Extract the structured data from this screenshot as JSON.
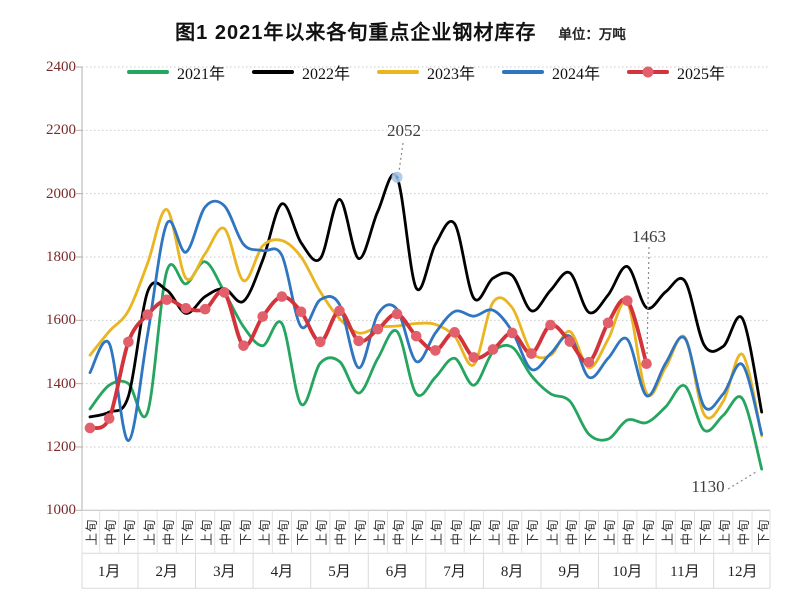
{
  "title": "图1  2021年以来各旬重点企业钢材库存",
  "unit_label": "单位：万吨",
  "chart_data": {
    "type": "line",
    "title": "图1 2021年以来各旬重点企业钢材库存",
    "unit": "万吨",
    "legend_position": "top",
    "grid": "horizontal-dotted",
    "x_axis": {
      "months": [
        "1月",
        "2月",
        "3月",
        "4月",
        "5月",
        "6月",
        "7月",
        "8月",
        "9月",
        "10月",
        "11月",
        "12月"
      ],
      "sub_periods": [
        "上旬",
        "中旬",
        "下旬"
      ]
    },
    "y_axis": {
      "min": 1000,
      "max": 2400,
      "step": 200,
      "ticks": [
        2400,
        2200,
        2000,
        1800,
        1600,
        1400,
        1200,
        1000
      ]
    },
    "series": [
      {
        "name": "2021年",
        "color": "#25A55F",
        "values": [
          1320,
          1395,
          1400,
          1310,
          1755,
          1715,
          1785,
          1690,
          1580,
          1520,
          1590,
          1335,
          1465,
          1470,
          1370,
          1480,
          1565,
          1368,
          1420,
          1480,
          1395,
          1500,
          1515,
          1425,
          1368,
          1345,
          1240,
          1225,
          1285,
          1277,
          1327,
          1393,
          1253,
          1300,
          1352,
          1130
        ]
      },
      {
        "name": "2022年",
        "color": "#000000",
        "values": [
          1295,
          1310,
          1360,
          1690,
          1695,
          1622,
          1675,
          1700,
          1660,
          1790,
          1968,
          1845,
          1795,
          1982,
          1795,
          1945,
          2052,
          1702,
          1840,
          1905,
          1670,
          1733,
          1742,
          1630,
          1695,
          1750,
          1625,
          1680,
          1770,
          1640,
          1690,
          1724,
          1522,
          1518,
          1605,
          1310
        ]
      },
      {
        "name": "2023年",
        "color": "#E9B520",
        "values": [
          1490,
          1565,
          1630,
          1780,
          1950,
          1733,
          1810,
          1890,
          1725,
          1835,
          1852,
          1800,
          1690,
          1605,
          1560,
          1578,
          1582,
          1590,
          1587,
          1550,
          1460,
          1657,
          1640,
          1500,
          1490,
          1565,
          1450,
          1540,
          1655,
          1370,
          1452,
          1546,
          1303,
          1345,
          1492,
          1235
        ]
      },
      {
        "name": "2024年",
        "color": "#2F75C0",
        "values": [
          1435,
          1527,
          1220,
          1555,
          1905,
          1815,
          1958,
          1962,
          1840,
          1820,
          1805,
          1580,
          1665,
          1650,
          1450,
          1620,
          1635,
          1470,
          1560,
          1628,
          1613,
          1632,
          1565,
          1445,
          1495,
          1550,
          1420,
          1480,
          1540,
          1362,
          1465,
          1543,
          1328,
          1368,
          1460,
          1240
        ]
      },
      {
        "name": "2025年",
        "color": "#D3333B",
        "marker_color": "#E2606C",
        "values": [
          1260,
          1290,
          1532,
          1618,
          1665,
          1638,
          1635,
          1688,
          1520,
          1612,
          1675,
          1627,
          1532,
          1630,
          1535,
          1572,
          1620,
          1550,
          1505,
          1562,
          1483,
          1508,
          1560,
          1495,
          1585,
          1533,
          1468,
          1592,
          1662,
          1463
        ]
      }
    ],
    "annotations": [
      {
        "text": "2052",
        "series": "2022年",
        "period_index": 16,
        "marker_color": "#A9C6E6"
      },
      {
        "text": "1463",
        "series": "2025年",
        "period_index": 29
      },
      {
        "text": "1130",
        "series": "2021年",
        "period_index": 35
      }
    ]
  }
}
